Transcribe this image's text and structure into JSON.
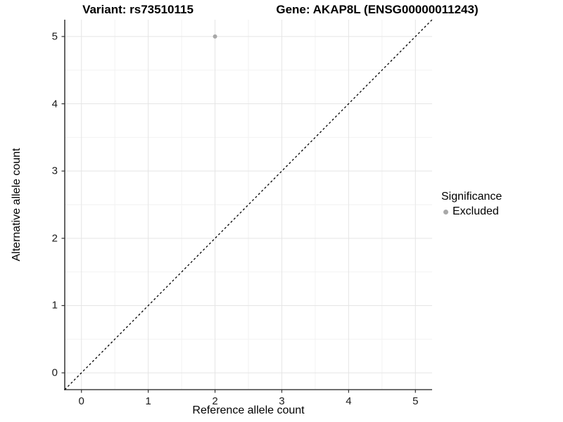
{
  "chart_data": {
    "type": "scatter",
    "title_left": "Variant: rs73510115",
    "title_right": "Gene: AKAP8L (ENSG00000011243)",
    "xlabel": "Reference allele count",
    "ylabel": "Alternative allele count",
    "xlim": [
      -0.25,
      5.25
    ],
    "ylim": [
      -0.25,
      5.25
    ],
    "x_ticks": [
      0,
      1,
      2,
      3,
      4,
      5
    ],
    "y_ticks": [
      0,
      1,
      2,
      3,
      4,
      5
    ],
    "grid": {
      "major": true,
      "minor": true
    },
    "points": [
      {
        "x": 2,
        "y": 5,
        "series": "Excluded"
      }
    ],
    "identity_line": {
      "slope": 1,
      "intercept": 0,
      "style": "dashed",
      "color": "#000000"
    },
    "legend": {
      "title": "Significance",
      "position": "right",
      "entries": [
        {
          "label": "Excluded",
          "marker": "circle",
          "color": "#a8a8a8"
        }
      ]
    },
    "colors": {
      "background": "#ffffff",
      "point": "#a8a8a8",
      "grid_major": "#e5e5e5",
      "grid_minor": "#f2f2f2",
      "axis_line": "#404040",
      "tick_mark": "#333333",
      "text": "#000000"
    }
  }
}
